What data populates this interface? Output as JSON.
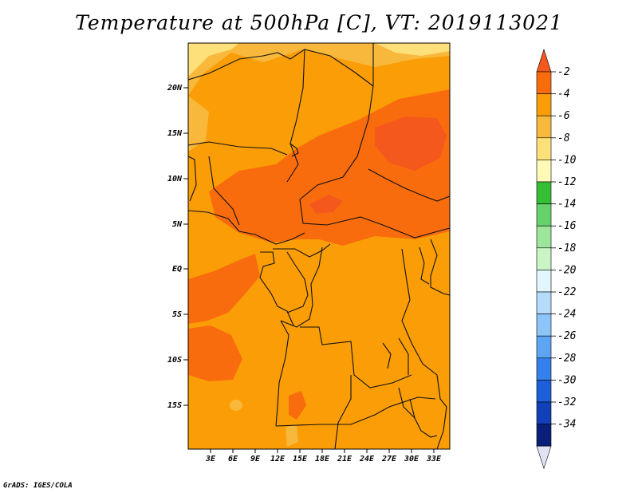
{
  "title": "Temperature at 500hPa [C], VT: 2019113021",
  "credit": "GrADS: IGES/COLA",
  "lat_labels": [
    "20N",
    "15N",
    "10N",
    "5N",
    "EQ",
    "5S",
    "10S",
    "15S"
  ],
  "lon_labels": [
    "3E",
    "6E",
    "9E",
    "12E",
    "15E",
    "18E",
    "21E",
    "24E",
    "27E",
    "30E",
    "33E"
  ],
  "colorbar": {
    "labels": [
      "-2",
      "-4",
      "-6",
      "-8",
      "-10",
      "-12",
      "-14",
      "-16",
      "-18",
      "-20",
      "-22",
      "-24",
      "-26",
      "-28",
      "-30",
      "-32",
      "-34"
    ],
    "colors": [
      "#f5581c",
      "#f96c0d",
      "#fa9d07",
      "#f8b83b",
      "#fee07a",
      "#fffab6",
      "#34bf35",
      "#66d26a",
      "#9ce59b",
      "#c9f5c5",
      "#e2f6fe",
      "#b5dbfc",
      "#8dc4fa",
      "#5da4f4",
      "#3481ee",
      "#1d5fd8",
      "#1140b8",
      "#0a1f7a",
      "#e2e2f5"
    ]
  }
}
